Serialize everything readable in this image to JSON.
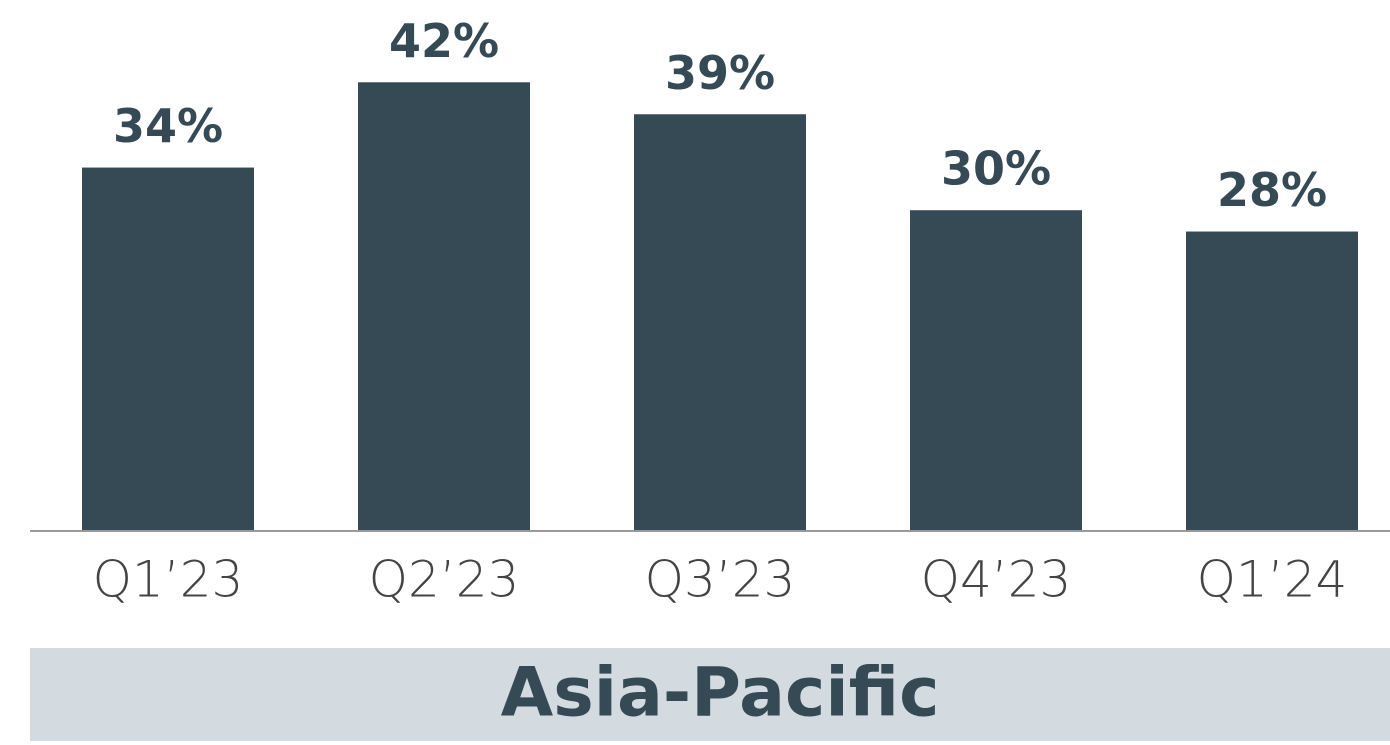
{
  "chart_data": {
    "type": "bar",
    "title": "Asia-Pacific",
    "categories": [
      "Q1’23",
      "Q2’23",
      "Q3’23",
      "Q4’23",
      "Q1’24"
    ],
    "values": [
      34,
      42,
      39,
      30,
      28
    ],
    "value_labels": [
      "34%",
      "42%",
      "39%",
      "30%",
      "28%"
    ],
    "color": "#364a56",
    "ylim": [
      0,
      50
    ]
  }
}
